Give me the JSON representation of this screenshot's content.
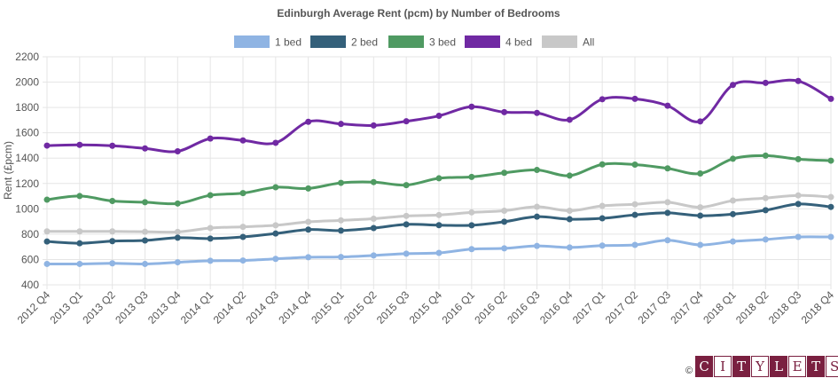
{
  "chart_data": {
    "type": "line",
    "title": "Edinburgh Average Rent (pcm) by Number of Bedrooms",
    "ylabel": "Rent (£pcm)",
    "xlabel": "",
    "ylim": [
      400,
      2200
    ],
    "yticks": [
      400,
      600,
      800,
      1000,
      1200,
      1400,
      1600,
      1800,
      2000,
      2200
    ],
    "grid": true,
    "legend_position": "top",
    "categories": [
      "2012 Q4",
      "2013 Q1",
      "2013 Q2",
      "2013 Q3",
      "2013 Q4",
      "2014 Q1",
      "2014 Q2",
      "2014 Q3",
      "2014 Q4",
      "2015 Q1",
      "2015 Q2",
      "2015 Q3",
      "2015 Q4",
      "2016 Q1",
      "2016 Q2",
      "2016 Q3",
      "2016 Q4",
      "2017 Q1",
      "2017 Q2",
      "2017 Q3",
      "2017 Q4",
      "2018 Q1",
      "2018 Q2",
      "2018 Q3",
      "2018 Q4"
    ],
    "series": [
      {
        "name": "1 bed",
        "color": "#8fb4e3",
        "values": [
          565,
          565,
          570,
          565,
          578,
          590,
          592,
          605,
          618,
          620,
          632,
          646,
          652,
          682,
          688,
          707,
          695,
          710,
          715,
          752,
          715,
          742,
          758,
          778,
          778
        ]
      },
      {
        "name": "2 bed",
        "color": "#34607a",
        "values": [
          742,
          728,
          745,
          750,
          772,
          765,
          778,
          805,
          836,
          828,
          848,
          877,
          871,
          870,
          898,
          938,
          918,
          925,
          952,
          968,
          946,
          958,
          989,
          1038,
          1015
        ]
      },
      {
        "name": "3 bed",
        "color": "#4f9a62",
        "values": [
          1072,
          1101,
          1062,
          1052,
          1042,
          1107,
          1124,
          1170,
          1161,
          1205,
          1211,
          1187,
          1241,
          1252,
          1284,
          1307,
          1262,
          1351,
          1349,
          1319,
          1279,
          1395,
          1420,
          1392,
          1380
        ]
      },
      {
        "name": "4 bed",
        "color": "#7029a3",
        "values": [
          1499,
          1505,
          1498,
          1477,
          1454,
          1555,
          1540,
          1521,
          1687,
          1670,
          1658,
          1691,
          1734,
          1806,
          1763,
          1757,
          1703,
          1865,
          1868,
          1814,
          1690,
          1978,
          1994,
          2009,
          1868
        ]
      },
      {
        "name": "All",
        "color": "#c8c8c8",
        "values": [
          822,
          822,
          822,
          819,
          818,
          848,
          858,
          870,
          897,
          909,
          922,
          944,
          951,
          972,
          985,
          1016,
          985,
          1023,
          1036,
          1052,
          1012,
          1065,
          1085,
          1106,
          1093
        ]
      }
    ]
  },
  "logo": {
    "copyright": "©",
    "letters": [
      "C",
      "I",
      "T",
      "Y",
      "L",
      "E",
      "T",
      "S"
    ],
    "letter_bg": [
      "#7a2040",
      "#ffffff",
      "#7a2040",
      "#ffffff",
      "#7a2040",
      "#ffffff",
      "#7a2040",
      "#ffffff"
    ],
    "letter_fg": [
      "#ffffff",
      "#7a2040",
      "#ffffff",
      "#7a2040",
      "#ffffff",
      "#7a2040",
      "#ffffff",
      "#7a2040"
    ]
  }
}
